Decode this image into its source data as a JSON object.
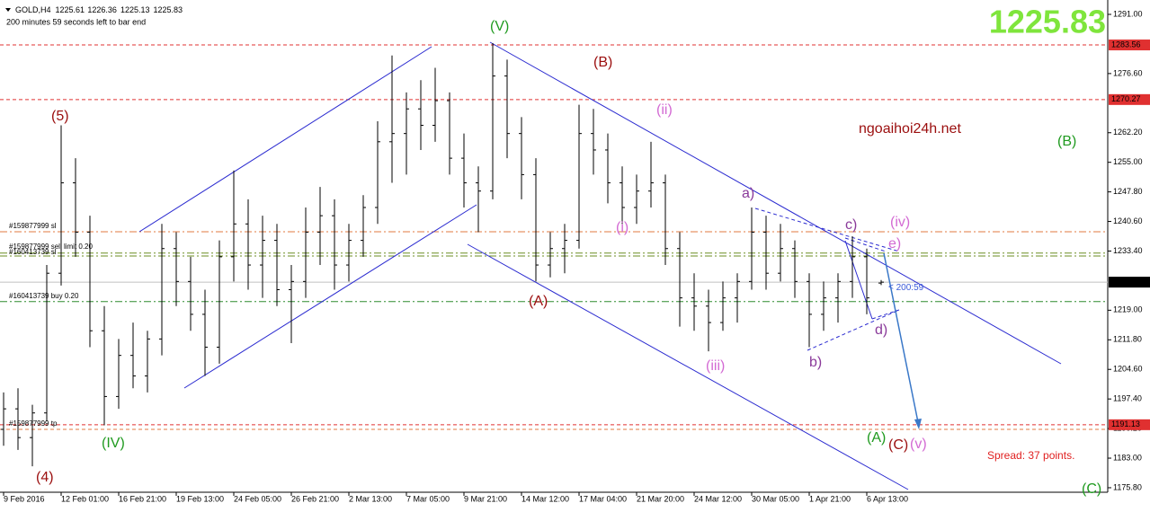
{
  "chart_data": {
    "type": "ohlc",
    "symbol": "GOLD,H4",
    "status": "200 minutes 59 seconds left to bar end",
    "watermark": "ngoaihoi24h.net",
    "spread": "Spread: 37 points.",
    "countdown": "200:59",
    "bar_color": "#000000",
    "price_color": "#7fe53c",
    "categories": [
      "9 Feb 2016",
      null,
      null,
      null,
      "12 Feb 01:00",
      null,
      null,
      null,
      "16 Feb 21:00",
      null,
      null,
      null,
      "19 Feb 13:00",
      null,
      null,
      null,
      "24 Feb 05:00",
      null,
      null,
      null,
      "26 Feb 21:00",
      null,
      null,
      null,
      "2 Mar 13:00",
      null,
      null,
      null,
      "7 Mar 05:00",
      null,
      null,
      null,
      "9 Mar 21:00",
      null,
      null,
      null,
      "14 Mar 12:00",
      null,
      null,
      null,
      "17 Mar 04:00",
      null,
      null,
      null,
      "21 Mar 20:00",
      null,
      null,
      null,
      "24 Mar 12:00",
      null,
      null,
      null,
      "30 Mar 05:00",
      null,
      null,
      null,
      "1 Apr 21:00",
      null,
      null,
      null,
      "6 Apr 13:00",
      null
    ],
    "open": [
      1190,
      1195,
      1188,
      1194,
      1228,
      1250,
      1238,
      1214,
      1198,
      1208,
      1203,
      1212,
      1234,
      1226,
      1218,
      1210,
      1232,
      1240,
      1230,
      1236,
      1224,
      1226,
      1238,
      1242,
      1230,
      1236,
      1244,
      1260,
      1262,
      1268,
      1264,
      1270,
      1256,
      1250,
      1248,
      1276,
      1262,
      1252,
      1230,
      1234,
      1236,
      1262,
      1258,
      1250,
      1244,
      1248,
      1250,
      1234,
      1222,
      1220,
      1216,
      1222,
      1226,
      1238,
      1228,
      1234,
      1226,
      1218,
      1222,
      1226,
      1232,
      1225.61
    ],
    "high": [
      1199,
      1200,
      1196,
      1230,
      1264,
      1256,
      1242,
      1220,
      1212,
      1216,
      1214,
      1240,
      1238,
      1232,
      1224,
      1236,
      1253,
      1246,
      1242,
      1240,
      1230,
      1244,
      1249,
      1246,
      1240,
      1247,
      1265,
      1281,
      1272,
      1275,
      1278,
      1272,
      1262,
      1254,
      1284,
      1280,
      1266,
      1256,
      1238,
      1240,
      1269,
      1268,
      1262,
      1254,
      1252,
      1260,
      1252,
      1238,
      1228,
      1224,
      1226,
      1228,
      1244,
      1242,
      1240,
      1236,
      1228,
      1226,
      1228,
      1237,
      1234,
      1226.36
    ],
    "low": [
      1186,
      1185,
      1181,
      1192,
      1225,
      1232,
      1210,
      1191,
      1195,
      1200,
      1199,
      1208,
      1220,
      1214,
      1203,
      1206,
      1226,
      1224,
      1222,
      1220,
      1211,
      1222,
      1230,
      1224,
      1226,
      1232,
      1240,
      1250,
      1252,
      1258,
      1260,
      1252,
      1244,
      1238,
      1246,
      1256,
      1246,
      1226,
      1227,
      1228,
      1234,
      1252,
      1245,
      1240,
      1240,
      1244,
      1230,
      1215,
      1214,
      1209,
      1214,
      1216,
      1224,
      1224,
      1226,
      1222,
      1210,
      1214,
      1216,
      1222,
      1218,
      1225.13
    ],
    "close": [
      1195,
      1188,
      1194,
      1228,
      1250,
      1238,
      1214,
      1198,
      1208,
      1203,
      1212,
      1234,
      1226,
      1218,
      1210,
      1232,
      1240,
      1230,
      1236,
      1224,
      1226,
      1238,
      1242,
      1230,
      1236,
      1244,
      1260,
      1262,
      1268,
      1264,
      1270,
      1256,
      1250,
      1248,
      1276,
      1262,
      1252,
      1230,
      1234,
      1236,
      1262,
      1258,
      1250,
      1244,
      1248,
      1250,
      1234,
      1222,
      1220,
      1216,
      1222,
      1226,
      1238,
      1228,
      1234,
      1226,
      1218,
      1222,
      1226,
      1232,
      1222,
      1225.83
    ],
    "ylim": [
      1174.7,
      1294.5
    ],
    "yticks": [
      {
        "value": 1291,
        "label": "1291.00"
      },
      {
        "value": 1276.6,
        "label": "1276.60"
      },
      {
        "value": 1262.2,
        "label": "1262.20"
      },
      {
        "value": 1255,
        "label": "1255.00"
      },
      {
        "value": 1247.8,
        "label": "1247.80"
      },
      {
        "value": 1240.6,
        "label": "1240.60"
      },
      {
        "value": 1233.4,
        "label": "1233.40"
      },
      {
        "value": 1219,
        "label": "1219.00"
      },
      {
        "value": 1211.8,
        "label": "1211.80"
      },
      {
        "value": 1204.6,
        "label": "1204.60"
      },
      {
        "value": 1197.4,
        "label": "1197.40"
      },
      {
        "value": 1190.2,
        "label": "1190.20"
      },
      {
        "value": 1183,
        "label": "1183.00"
      },
      {
        "value": 1175.8,
        "label": "1175.80"
      }
    ],
    "price_lines": [
      {
        "value": 1283.56,
        "color": "#e03030",
        "style": "dashed"
      },
      {
        "value": 1270.27,
        "color": "#e03030",
        "style": "dashed"
      },
      {
        "value": 1191.13,
        "color": "#e03030",
        "style": "dashed"
      }
    ],
    "levels": [
      {
        "value": 1238.1,
        "color": "#e07a40",
        "style": "dashdot"
      },
      {
        "value": 1232.9,
        "color": "#6b8e23",
        "style": "dashdot"
      },
      {
        "value": 1232.2,
        "color": "#6b8e23",
        "style": "dashdot"
      },
      {
        "value": 1221.1,
        "color": "#2e8b2e",
        "style": "dashdot"
      },
      {
        "value": 1190.0,
        "color": "#e07a40",
        "style": "dashed"
      }
    ],
    "orders": [
      "#159877999 sl",
      "#159877999 sell limit 0.20",
      "#160413739 sl",
      "#160413739 buy 0.20",
      "#159877999 tp"
    ],
    "annotations": [
      "(V)",
      "(B)",
      "(5)",
      "(ii)",
      "(i)",
      "a)",
      "b)",
      "c)",
      "d)",
      "e)",
      "(iv)",
      "(iii)",
      "(A)",
      "(A)",
      "(C)",
      "(v)",
      "(IV)",
      "(4)",
      "(B)",
      "(C)"
    ]
  }
}
